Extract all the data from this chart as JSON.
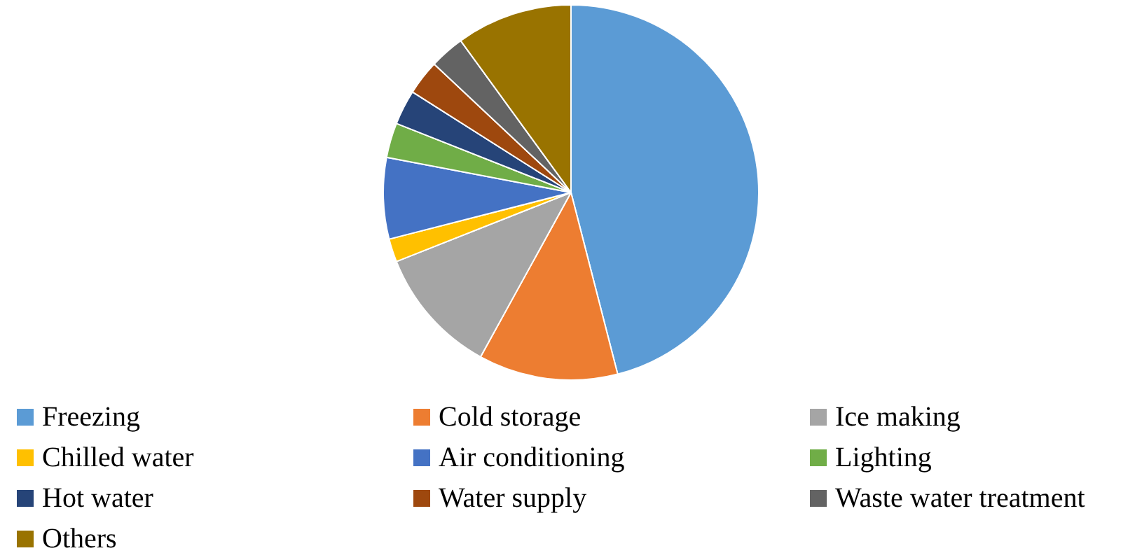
{
  "chart_data": {
    "type": "pie",
    "categories": [
      "Freezing",
      "Cold storage",
      "Ice making",
      "Chilled water",
      "Air conditioning",
      "Lighting",
      "Hot water",
      "Water supply",
      "Waste water treatment",
      "Others"
    ],
    "values": [
      46,
      12,
      11,
      2,
      7,
      3,
      3,
      3,
      3,
      10
    ],
    "colors": [
      "#5b9bd5",
      "#ed7d31",
      "#a5a5a5",
      "#ffc000",
      "#4472c4",
      "#70ad47",
      "#264478",
      "#9e480e",
      "#636363",
      "#997300"
    ],
    "legend": "bottom"
  }
}
